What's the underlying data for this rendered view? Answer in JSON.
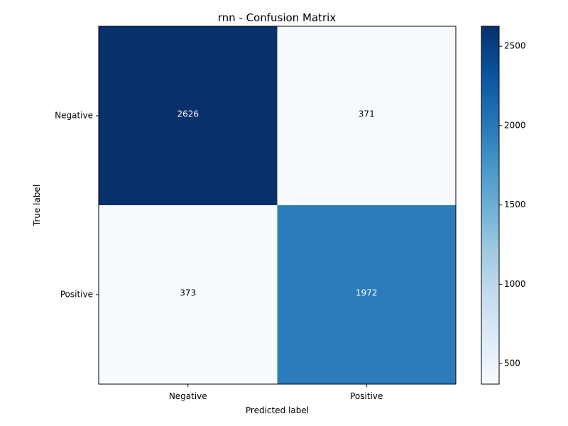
{
  "chart_data": {
    "type": "heatmap",
    "title": "rnn - Confusion Matrix",
    "xlabel": "Predicted label",
    "ylabel": "True label",
    "x_categories": [
      "Negative",
      "Positive"
    ],
    "y_categories": [
      "Negative",
      "Positive"
    ],
    "values": [
      [
        2626,
        371
      ],
      [
        373,
        1972
      ]
    ],
    "colormap": "Blues",
    "color_range": [
      371,
      2626
    ],
    "colorbar_ticks": [
      500,
      1000,
      1500,
      2000,
      2500
    ],
    "colorbar_tick_labels": [
      "500",
      "1000",
      "1500",
      "2000",
      "2500"
    ],
    "text_color_dark_bg": "#ffffff",
    "text_color_light_bg": "#000000"
  }
}
